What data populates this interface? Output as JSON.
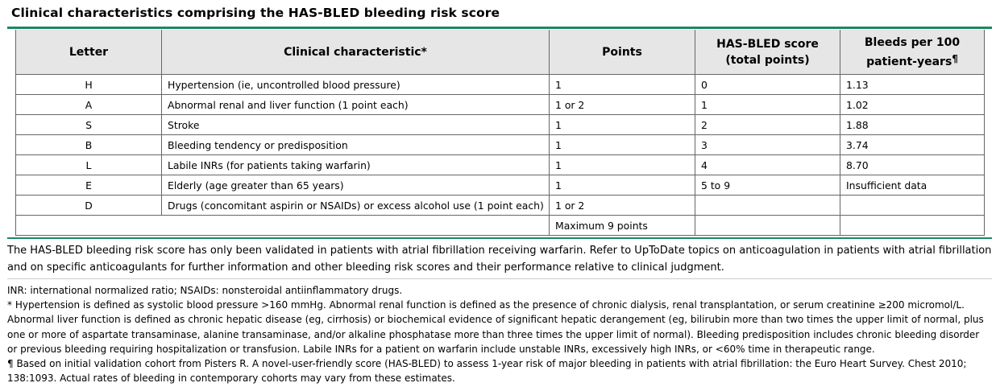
{
  "title": "Clinical characteristics comprising the HAS-BLED bleeding risk score",
  "table": {
    "headers": {
      "letter": "Letter",
      "characteristic": "Clinical characteristic*",
      "points": "Points",
      "score_line1": "HAS-BLED score",
      "score_line2": "(total points)",
      "bleeds_line1": "Bleeds per 100",
      "bleeds_line2": "patient-years",
      "bleeds_mark": "¶"
    },
    "rows": [
      {
        "letter": "H",
        "characteristic": "Hypertension (ie, uncontrolled blood pressure)",
        "points": "1",
        "score": "0",
        "bleeds": "1.13"
      },
      {
        "letter": "A",
        "characteristic": "Abnormal renal and liver function (1 point each)",
        "points": "1 or 2",
        "score": "1",
        "bleeds": "1.02"
      },
      {
        "letter": "S",
        "characteristic": "Stroke",
        "points": "1",
        "score": "2",
        "bleeds": "1.88"
      },
      {
        "letter": "B",
        "characteristic": "Bleeding tendency or predisposition",
        "points": "1",
        "score": "3",
        "bleeds": "3.74"
      },
      {
        "letter": "L",
        "characteristic": "Labile INRs (for patients taking warfarin)",
        "points": "1",
        "score": "4",
        "bleeds": "8.70"
      },
      {
        "letter": "E",
        "characteristic": "Elderly (age greater than 65 years)",
        "points": "1",
        "score": "5 to 9",
        "bleeds": "Insufficient data"
      },
      {
        "letter": "D",
        "characteristic": "Drugs (concomitant aspirin or NSAIDs) or excess alcohol use (1 point each)",
        "points": "1 or 2",
        "score": "",
        "bleeds": ""
      }
    ],
    "total": {
      "points": "Maximum 9 points"
    }
  },
  "note": "The HAS-BLED bleeding risk score has only been validated in patients with atrial fibrillation receiving warfarin. Refer to UpToDate topics on anticoagulation in patients with atrial fibrillation and on specific anticoagulants for further information and other bleeding risk scores and their performance relative to clinical judgment.",
  "footnotes": {
    "abbrev": "INR: international normalized ratio; NSAIDs: nonsteroidal antiinflammatory drugs.",
    "star": "* Hypertension is defined as systolic blood pressure >160 mmHg. Abnormal renal function is defined as the presence of chronic dialysis, renal transplantation, or serum creatinine ≥200 micromol/L. Abnormal liver function is defined as chronic hepatic disease (eg, cirrhosis) or biochemical evidence of significant hepatic derangement (eg, bilirubin more than two times the upper limit of normal, plus one or more of aspartate transaminase, alanine transaminase, and/or alkaline phosphatase more than three times the upper limit of normal). Bleeding predisposition includes chronic bleeding disorder or previous bleeding requiring hospitalization or transfusion. Labile INRs for a patient on warfarin include unstable INRs, excessively high INRs, or <60% time in therapeutic range.",
    "pilcrow": "¶ Based on initial validation cohort from Pisters R. A novel-user-friendly score (HAS-BLED) to assess 1-year risk of major bleeding in patients with atrial fibrillation: the Euro Heart Survey. Chest 2010; 138:1093. Actual rates of bleeding in contemporary cohorts may vary from these estimates."
  },
  "colors": {
    "accent": "#1a8a5f",
    "header_bg": "#e6e6e6",
    "border": "#666666"
  }
}
